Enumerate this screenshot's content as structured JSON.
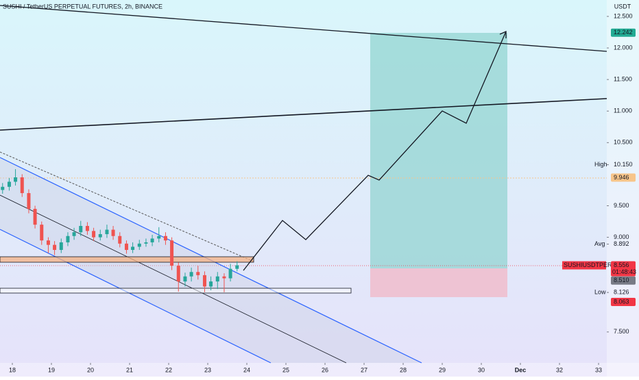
{
  "header": {
    "title": "SUSHI / TetherUS PERPETUAL FUTURES, 2h, BINANCE"
  },
  "chart_data": {
    "type": "candlestick",
    "unit": "USDT",
    "x": [
      17.75,
      17.92,
      18.08,
      18.25,
      18.42,
      18.58,
      18.75,
      18.92,
      19.08,
      19.25,
      19.42,
      19.58,
      19.75,
      19.92,
      20.08,
      20.25,
      20.42,
      20.58,
      20.75,
      20.92,
      21.08,
      21.25,
      21.42,
      21.58,
      21.75,
      21.92,
      22.08,
      22.25,
      22.42,
      22.58,
      22.75,
      22.92,
      23.08,
      23.25,
      23.42,
      23.58,
      23.75
    ],
    "open": [
      9.75,
      9.8,
      9.88,
      9.95,
      9.7,
      9.45,
      9.2,
      8.95,
      8.88,
      8.8,
      8.92,
      9.02,
      9.08,
      9.18,
      9.1,
      9.0,
      9.05,
      9.12,
      9.02,
      8.9,
      8.8,
      8.85,
      8.9,
      8.92,
      8.98,
      9.02,
      8.95,
      8.55,
      8.3,
      8.38,
      8.45,
      8.4,
      8.22,
      8.3,
      8.38,
      8.35,
      8.5
    ],
    "high": [
      9.86,
      9.94,
      10.08,
      10.0,
      9.76,
      9.5,
      9.25,
      9.0,
      8.94,
      8.98,
      9.08,
      9.15,
      9.26,
      9.24,
      9.15,
      9.12,
      9.2,
      9.18,
      9.08,
      8.95,
      8.92,
      8.96,
      8.98,
      9.04,
      9.16,
      9.08,
      9.0,
      8.6,
      8.44,
      8.52,
      8.55,
      8.46,
      8.38,
      8.45,
      8.43,
      8.58,
      8.62
    ],
    "low": [
      9.69,
      9.74,
      9.82,
      9.64,
      9.38,
      9.14,
      8.88,
      8.75,
      8.72,
      8.75,
      8.86,
      8.96,
      9.02,
      9.04,
      8.94,
      8.95,
      8.99,
      8.96,
      8.84,
      8.74,
      8.75,
      8.8,
      8.85,
      8.86,
      8.92,
      8.88,
      8.48,
      8.14,
      8.22,
      8.3,
      8.33,
      8.13,
      8.16,
      8.18,
      8.13,
      8.3,
      8.46
    ],
    "close": [
      9.8,
      9.88,
      9.95,
      9.7,
      9.45,
      9.2,
      8.95,
      8.88,
      8.8,
      8.92,
      9.02,
      9.08,
      9.18,
      9.1,
      9.0,
      9.05,
      9.12,
      9.02,
      8.9,
      8.8,
      8.85,
      8.9,
      8.92,
      8.98,
      9.02,
      8.95,
      8.55,
      8.3,
      8.38,
      8.45,
      8.4,
      8.22,
      8.3,
      8.38,
      8.35,
      8.5,
      8.556
    ],
    "up_color": "#26a69a",
    "down_color": "#ef5350",
    "xlim": [
      17.684,
      33.21
    ],
    "xticks": [
      18,
      19,
      20,
      21,
      22,
      23,
      24,
      25,
      26,
      27,
      28,
      29,
      30,
      {
        "value": 31,
        "label": "Dec"
      },
      32,
      33
    ],
    "ylim": [
      7.01,
      12.76
    ],
    "yticks": [
      {
        "value": 12.5,
        "label": "12.500"
      },
      {
        "value": 12,
        "label": "12.000"
      },
      {
        "value": 11.5,
        "label": "11.500"
      },
      {
        "value": 11,
        "label": "11.000"
      },
      {
        "value": 10.5,
        "label": "10.500"
      },
      {
        "value": 9.5,
        "label": "9.500"
      },
      {
        "value": 9,
        "label": "9.000"
      },
      {
        "value": 7.5,
        "label": "7.500"
      }
    ]
  },
  "price_tags": [
    {
      "value": 12.242,
      "label": "12.242",
      "color": "#22ab94"
    },
    {
      "caption": "High",
      "value": 10.15,
      "label": "10.150"
    },
    {
      "value": 9.946,
      "label": "9.946",
      "color": "#f7c58a"
    },
    {
      "caption": "Avg",
      "value": 8.892,
      "label": "8.892"
    },
    {
      "name": "SUSHIUSDTPERP",
      "value": 8.556,
      "label": "8.556",
      "countdown": "01:48:43",
      "color": "#f23645"
    },
    {
      "value": 8.51,
      "label": "8.510",
      "color": "#787b86"
    },
    {
      "caption": "Low",
      "value": 8.126,
      "label": "8.126"
    },
    {
      "value": 8.063,
      "label": "8.063",
      "color": "#f23645"
    }
  ]
}
